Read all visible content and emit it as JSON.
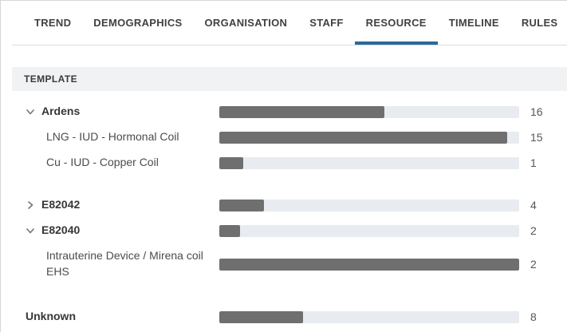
{
  "tabs": [
    {
      "label": "TREND",
      "active": false
    },
    {
      "label": "DEMOGRAPHICS",
      "active": false
    },
    {
      "label": "ORGANISATION",
      "active": false
    },
    {
      "label": "STAFF",
      "active": false
    },
    {
      "label": "RESOURCE",
      "active": true
    },
    {
      "label": "TIMELINE",
      "active": false
    },
    {
      "label": "RULES",
      "active": false
    }
  ],
  "section": {
    "title": "TEMPLATE"
  },
  "colors": {
    "accent": "#2a6a9c",
    "bar_fill": "#6f6f6f",
    "bar_track": "#e8ebef"
  },
  "chart_data": {
    "type": "bar",
    "orientation": "horizontal",
    "title": "TEMPLATE",
    "legend": "none",
    "grid": false,
    "rows": [
      {
        "label": "Ardens",
        "value": 16,
        "fill_pct": 55,
        "level": 0,
        "bold": true,
        "chevron": "down",
        "expanded": true,
        "gap_after": 0,
        "tall": false
      },
      {
        "label": "LNG - IUD - Hormonal Coil",
        "value": 15,
        "fill_pct": 96,
        "level": 1,
        "bold": false,
        "chevron": "none",
        "gap_after": 0,
        "tall": false
      },
      {
        "label": "Cu - IUD - Copper Coil",
        "value": 1,
        "fill_pct": 8,
        "level": 1,
        "bold": false,
        "chevron": "none",
        "gap_after": 21,
        "tall": false
      },
      {
        "label": "E82042",
        "value": 4,
        "fill_pct": 15,
        "level": 0,
        "bold": true,
        "chevron": "right",
        "expanded": false,
        "gap_after": 0,
        "tall": false
      },
      {
        "label": "E82040",
        "value": 2,
        "fill_pct": 7,
        "level": 0,
        "bold": true,
        "chevron": "down",
        "expanded": true,
        "gap_after": 0,
        "tall": false
      },
      {
        "label": "Intrauterine Device / Mirena coil EHS",
        "value": 2,
        "fill_pct": 100,
        "level": 1,
        "bold": false,
        "chevron": "none",
        "gap_after": 24,
        "tall": true
      },
      {
        "label": "Unknown",
        "value": 8,
        "fill_pct": 28,
        "level": 0,
        "bold": true,
        "chevron": "none",
        "gap_after": 0,
        "tall": false
      }
    ]
  }
}
